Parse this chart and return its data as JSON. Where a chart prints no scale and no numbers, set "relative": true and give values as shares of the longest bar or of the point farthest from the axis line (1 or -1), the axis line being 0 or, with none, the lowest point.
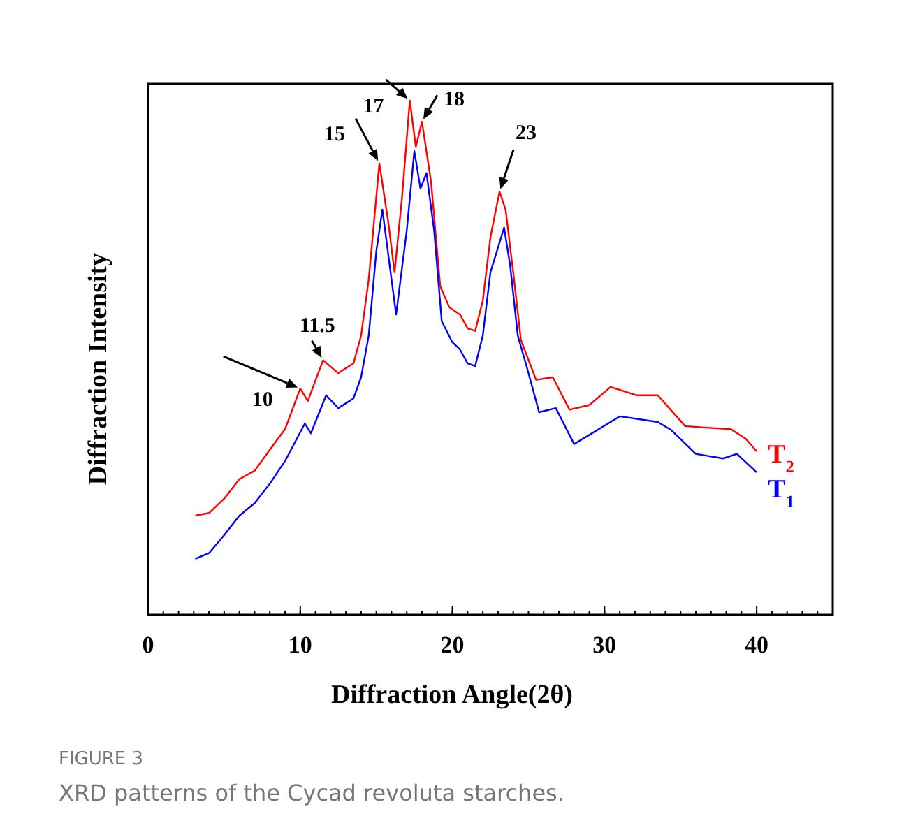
{
  "chart_data": {
    "type": "line",
    "relative": true,
    "xlabel": "Diffraction Angle(2θ)",
    "ylabel": "Diffraction Intensity",
    "xlim": [
      0,
      45
    ],
    "xticks": [
      0,
      10,
      20,
      30,
      40
    ],
    "grid": false,
    "legend": false,
    "marker": "none",
    "line_style": "solid",
    "series": [
      {
        "name": "T$_{2}$",
        "color": "#ff0000",
        "x": [
          3.1,
          4.0,
          5.0,
          6.0,
          7.0,
          8.0,
          9.0,
          10.0,
          10.5,
          11.5,
          12.5,
          13.5,
          14.0,
          14.5,
          15.2,
          15.8,
          16.2,
          16.7,
          17.2,
          17.6,
          18.0,
          18.6,
          19.2,
          19.8,
          20.5,
          21.0,
          21.5,
          22.0,
          22.5,
          23.1,
          23.5,
          24.0,
          24.5,
          25.5,
          26.6,
          27.7,
          29.0,
          30.4,
          32.1,
          33.5,
          35.3,
          36.7,
          38.3,
          39.3,
          40.0
        ],
        "values": [
          0.193,
          0.198,
          0.226,
          0.264,
          0.28,
          0.321,
          0.361,
          0.44,
          0.416,
          0.495,
          0.47,
          0.489,
          0.543,
          0.652,
          0.878,
          0.761,
          0.666,
          0.815,
          1.0,
          0.91,
          0.959,
          0.842,
          0.639,
          0.598,
          0.584,
          0.557,
          0.552,
          0.611,
          0.734,
          0.823,
          0.788,
          0.666,
          0.535,
          0.457,
          0.462,
          0.399,
          0.408,
          0.443,
          0.427,
          0.427,
          0.367,
          0.364,
          0.361,
          0.342,
          0.318
        ]
      },
      {
        "name": "T$_{1}$",
        "color": "#0000ff",
        "x": [
          3.1,
          4.0,
          5.0,
          6.0,
          7.0,
          8.0,
          9.0,
          10.3,
          10.7,
          11.7,
          12.5,
          13.5,
          14.0,
          14.5,
          15.0,
          15.4,
          16.0,
          16.3,
          17.0,
          17.5,
          17.9,
          18.3,
          18.8,
          19.3,
          20.0,
          20.5,
          21.0,
          21.5,
          22.0,
          22.5,
          23.4,
          23.8,
          24.3,
          24.9,
          25.7,
          26.8,
          28.0,
          30.4,
          31.0,
          33.5,
          34.4,
          36.0,
          37.8,
          38.7,
          40.0
        ],
        "values": [
          0.109,
          0.12,
          0.155,
          0.193,
          0.217,
          0.255,
          0.299,
          0.372,
          0.353,
          0.427,
          0.402,
          0.421,
          0.462,
          0.543,
          0.707,
          0.788,
          0.652,
          0.584,
          0.747,
          0.902,
          0.829,
          0.859,
          0.747,
          0.571,
          0.53,
          0.516,
          0.489,
          0.484,
          0.543,
          0.666,
          0.753,
          0.679,
          0.543,
          0.481,
          0.394,
          0.402,
          0.332,
          0.375,
          0.386,
          0.375,
          0.359,
          0.313,
          0.304,
          0.313,
          0.277
        ]
      }
    ],
    "annotations": [
      {
        "text": "10",
        "x": 10.0,
        "y": 0.44
      },
      {
        "text": "11.5",
        "x": 11.5,
        "y": 0.495
      },
      {
        "text": "15",
        "x": 15.2,
        "y": 0.878
      },
      {
        "text": "17",
        "x": 17.2,
        "y": 1.0
      },
      {
        "text": "18",
        "x": 18.0,
        "y": 0.959
      },
      {
        "text": "23",
        "x": 23.1,
        "y": 0.823
      },
      "FIGURE 3",
      "XRD patterns of the Cycad revoluta starches."
    ]
  }
}
